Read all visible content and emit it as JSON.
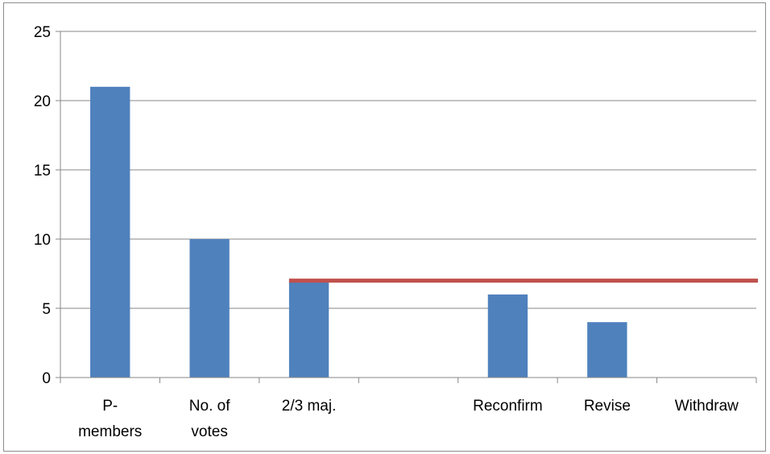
{
  "chart_data": {
    "type": "bar",
    "title": "",
    "xlabel": "",
    "ylabel": "",
    "categories": [
      [
        "P-",
        "members"
      ],
      [
        "No. of",
        "votes"
      ],
      [
        "2/3 maj."
      ],
      [
        ""
      ],
      [
        "Reconfirm"
      ],
      [
        "Revise"
      ],
      [
        "Withdraw"
      ]
    ],
    "values": [
      21,
      10,
      7,
      null,
      6,
      4,
      null
    ],
    "ylim": [
      0,
      25
    ],
    "yticks": [
      0,
      5,
      10,
      15,
      20,
      25
    ],
    "threshold": {
      "value": 7,
      "from_category_index": 2,
      "color": "#c0504d"
    },
    "bar_color": "#4f81bd",
    "grid": true,
    "legend": "none"
  }
}
